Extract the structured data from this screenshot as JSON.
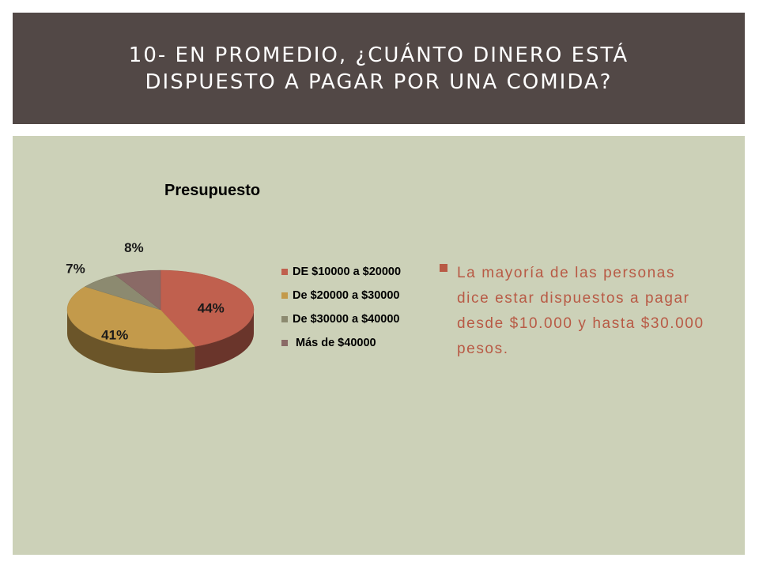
{
  "slide": {
    "title": "10- EN PROMEDIO, ¿CUÁNTO DINERO ESTÁ DISPUESTO A PAGAR POR UNA COMIDA?",
    "bullet": "La mayoría de las personas dice estar dispuestos a pagar desde $10.000 y hasta $30.000 pesos."
  },
  "colors": {
    "title_bar": "#524846",
    "content_bg": "#ccd1b8",
    "accent_text": "#b85a45"
  },
  "chart_data": {
    "type": "pie",
    "title": "Presupuesto",
    "categories": [
      "DE $10000 a $20000",
      "De $20000 a $30000",
      "De $30000 a $40000",
      "Más de $40000"
    ],
    "values": [
      44,
      41,
      7,
      8
    ],
    "labels": [
      "44%",
      "41%",
      "7%",
      "8%"
    ],
    "colors": [
      "#c0604e",
      "#c39a4b",
      "#8c8a70",
      "#8a6a66"
    ],
    "legend_position": "right",
    "style": "3d"
  }
}
